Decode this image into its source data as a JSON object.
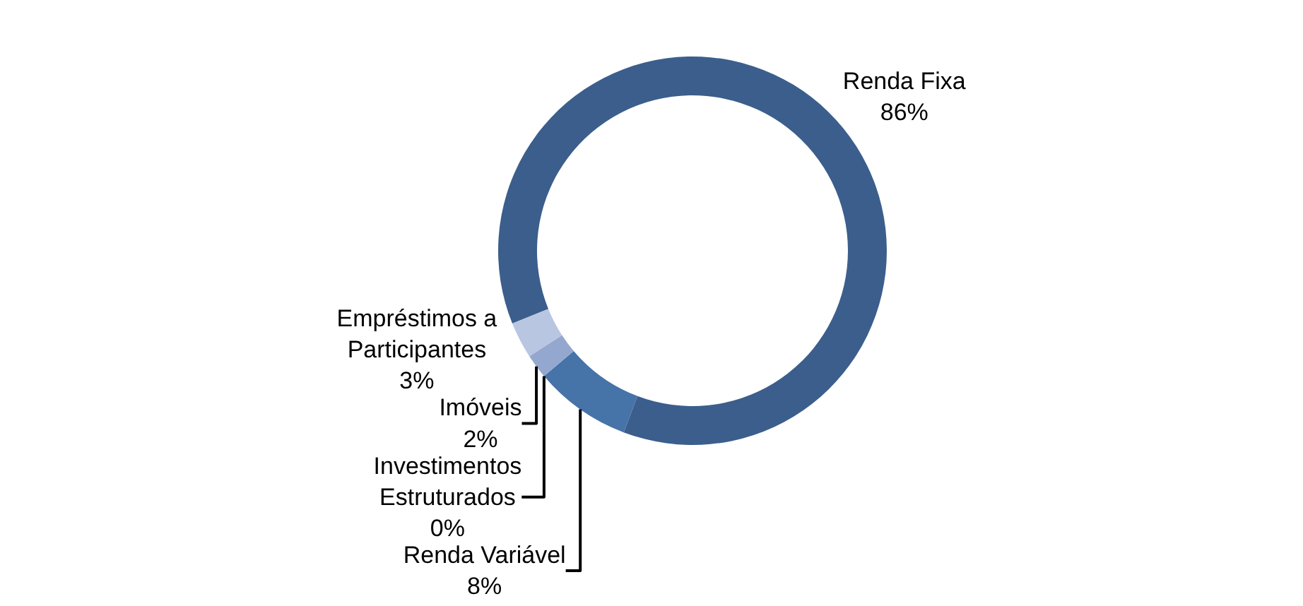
{
  "chart_data": {
    "type": "donut",
    "categories": [
      "Renda Fixa",
      "Renda Variável",
      "Investimentos Estruturados",
      "Imóveis",
      "Empréstimos a Participantes"
    ],
    "values": [
      86,
      8,
      0,
      2,
      3
    ],
    "colors": [
      "#3b5e8c",
      "#4673a8",
      "#4f81bd",
      "#94a8cf",
      "#b8c6e2"
    ],
    "value_labels": [
      "86%",
      "8%",
      "0%",
      "2%",
      "3%"
    ],
    "legend": false
  }
}
